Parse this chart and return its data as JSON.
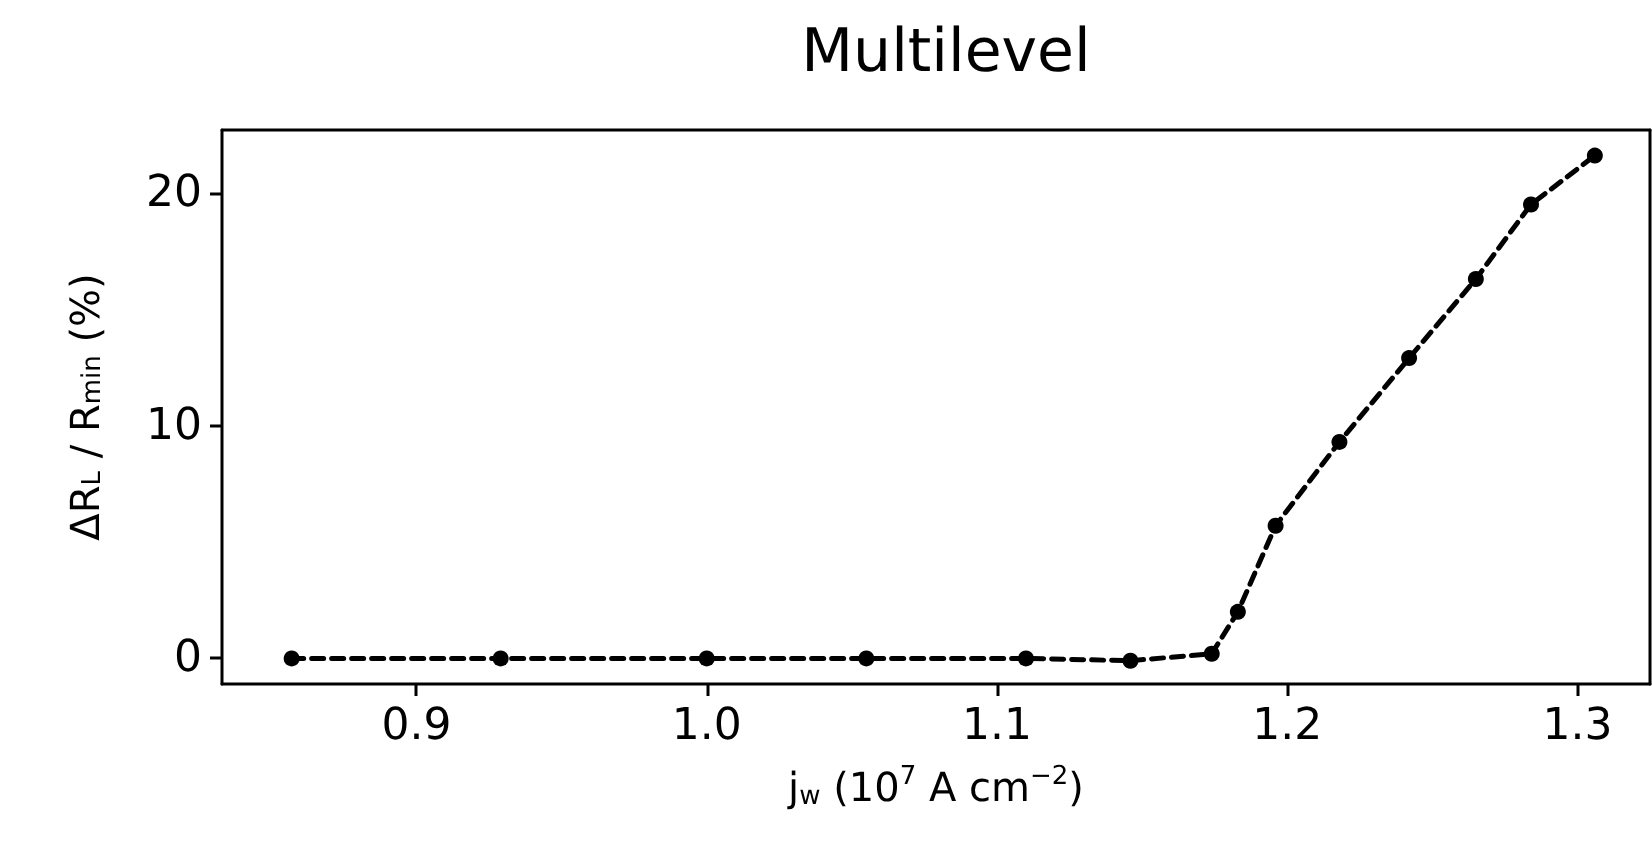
{
  "chart_data": {
    "type": "line",
    "title": "Multilevel",
    "xlabel": "j$_{w}$ (10$^{7}$ A cm$^{−2}$)",
    "ylabel": "ΔR$_{L}$ / R$_{min}$ (%)",
    "x": [
      0.857,
      0.929,
      1.0,
      1.055,
      1.11,
      1.146,
      1.174,
      1.183,
      1.196,
      1.218,
      1.242,
      1.265,
      1.284,
      1.306
    ],
    "series": [
      {
        "color": "#000000",
        "values": [
          0,
          0,
          0,
          0,
          0,
          -0.1,
          0.2,
          2.0,
          5.7,
          9.3,
          12.9,
          16.3,
          19.5,
          21.6
        ]
      }
    ],
    "xlim": [
      0.833,
      1.325
    ],
    "xticks": [
      {
        "value": 0.9,
        "label": "0.9"
      },
      {
        "value": 1.0,
        "label": "1.0"
      },
      {
        "value": 1.1,
        "label": "1.1"
      },
      {
        "value": 1.2,
        "label": "1.2"
      },
      {
        "value": 1.3,
        "label": "1.3"
      }
    ],
    "ylim": [
      -1.1,
      22.7
    ],
    "yticks": [
      0,
      10,
      20
    ],
    "grid": false,
    "marker": "circle",
    "line_style": "dashed"
  }
}
